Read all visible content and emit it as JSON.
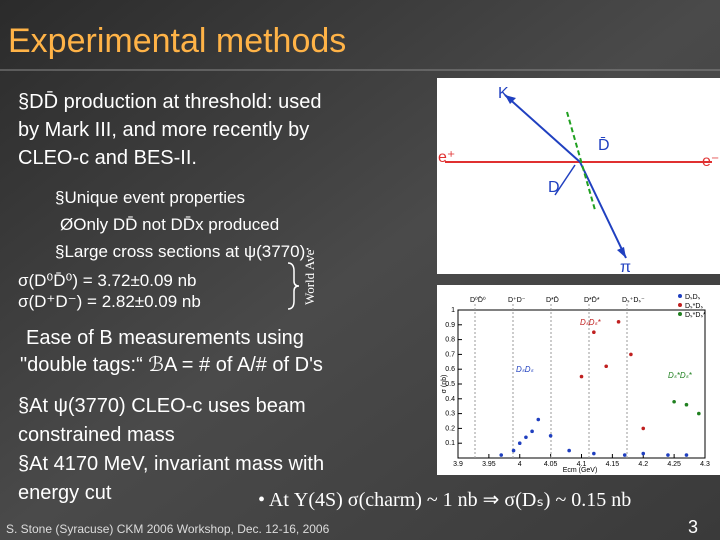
{
  "title": "Experimental methods",
  "intro": [
    "§DD̄ production at threshold: used",
    "by Mark III,  and more recently by",
    "CLEO-c and BES-II."
  ],
  "sub": [
    "§Unique event properties",
    "ØOnly DD̄ not DD̄x produced",
    "§Large cross sections at ψ(3770):"
  ],
  "xsec": [
    "σ(D⁰D̄⁰) =   3.72±0.09  nb",
    "σ(D⁺D⁻) =   2.82±0.09  nb"
  ],
  "world_ave": "World Ave",
  "ease": [
    "Ease of B measurements using",
    "\"double tags:“ ℬA = # of A/# of D's"
  ],
  "mass": [
    "§At ψ(3770) CLEO-c uses beam",
    "constrained mass",
    "§At 4170 MeV, invariant mass with",
    "energy cut"
  ],
  "upsilon": "• At Υ(4S) σ(charm) ~ 1 nb ⇒ σ(Dₛ) ~ 0.15 nb",
  "footer": "S. Stone (Syracuse) CKM 2006 Workshop, Dec. 12-16, 2006",
  "page": "3",
  "diagram": {
    "labels": [
      "K",
      "D̄",
      "e⁺",
      "e⁻",
      "D",
      "π"
    ]
  },
  "plot": {
    "type": "scatter",
    "xlabel": "Ecm (GeV)",
    "ylabel": "σ (nb)",
    "xlim": [
      3.9,
      4.3
    ],
    "ylim": [
      0,
      1
    ],
    "xticks": [
      3.9,
      3.95,
      4,
      4.05,
      4.1,
      4.15,
      4.2,
      4.25,
      4.3
    ],
    "yticks": [
      0.1,
      0.2,
      0.3,
      0.4,
      0.5,
      0.6,
      0.7,
      0.8,
      0.9,
      1
    ],
    "channels": [
      "D⁰D̄⁰",
      "D⁺D⁻",
      "D*D̄",
      "D*D̄*",
      "Dₛ⁺Dₛ⁻"
    ],
    "annotations": [
      "DₛDₛ*",
      "DₛDₛ",
      "Dₛ*Dₛ*"
    ],
    "series": [
      {
        "name": "DₛDₛ",
        "color": "#1f3fbf",
        "x": [
          3.97,
          3.99,
          4.0,
          4.01,
          4.02,
          4.03,
          4.05,
          4.08,
          4.12,
          4.17,
          4.2,
          4.24,
          4.27
        ],
        "values": [
          0.02,
          0.05,
          0.1,
          0.14,
          0.18,
          0.26,
          0.15,
          0.05,
          0.03,
          0.02,
          0.03,
          0.02,
          0.02
        ]
      },
      {
        "name": "Dₛ*Dₛ",
        "color": "#c02020",
        "x": [
          4.1,
          4.12,
          4.14,
          4.16,
          4.18,
          4.2
        ],
        "values": [
          0.55,
          0.85,
          0.62,
          0.92,
          0.7,
          0.2
        ]
      },
      {
        "name": "Dₛ*Dₛ*",
        "color": "#208020",
        "x": [
          4.25,
          4.27,
          4.29
        ],
        "values": [
          0.38,
          0.36,
          0.3
        ]
      }
    ]
  }
}
